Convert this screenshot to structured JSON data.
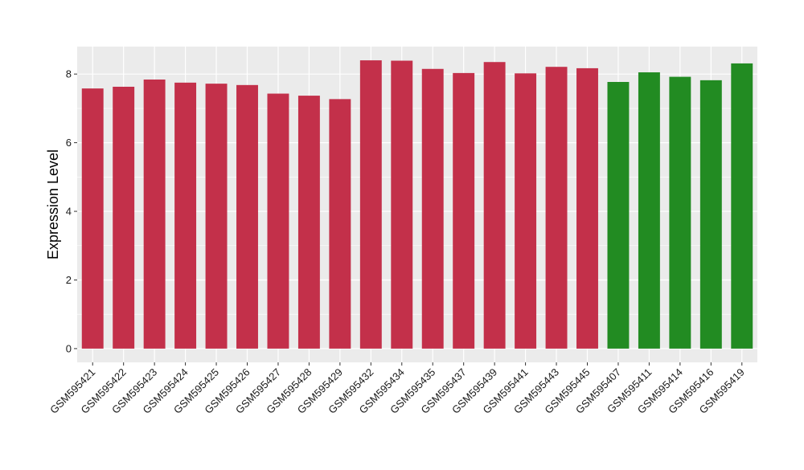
{
  "chart_data": {
    "type": "bar",
    "title": "",
    "xlabel": "",
    "ylabel": "Expression Level",
    "ylim": [
      -0.4,
      8.8
    ],
    "yticks": [
      0,
      2,
      4,
      6,
      8
    ],
    "grid": true,
    "legend": "none",
    "categories": [
      "GSM595421",
      "GSM595422",
      "GSM595423",
      "GSM595424",
      "GSM595425",
      "GSM595426",
      "GSM595427",
      "GSM595428",
      "GSM595429",
      "GSM595432",
      "GSM595434",
      "GSM595435",
      "GSM595437",
      "GSM595439",
      "GSM595441",
      "GSM595443",
      "GSM595445",
      "GSM595407",
      "GSM595411",
      "GSM595414",
      "GSM595416",
      "GSM595419"
    ],
    "values": [
      7.58,
      7.63,
      7.84,
      7.75,
      7.72,
      7.68,
      7.43,
      7.37,
      7.27,
      8.4,
      8.39,
      8.15,
      8.03,
      8.35,
      8.02,
      8.21,
      8.17,
      7.77,
      8.05,
      7.92,
      7.82,
      8.31
    ],
    "bar_colors": [
      "#C3304A",
      "#C3304A",
      "#C3304A",
      "#C3304A",
      "#C3304A",
      "#C3304A",
      "#C3304A",
      "#C3304A",
      "#C3304A",
      "#C3304A",
      "#C3304A",
      "#C3304A",
      "#C3304A",
      "#C3304A",
      "#C3304A",
      "#C3304A",
      "#C3304A",
      "#228B22",
      "#228B22",
      "#228B22",
      "#228B22",
      "#228B22"
    ],
    "panel_background": "#EBEBEB",
    "grid_color": "#FFFFFF"
  }
}
